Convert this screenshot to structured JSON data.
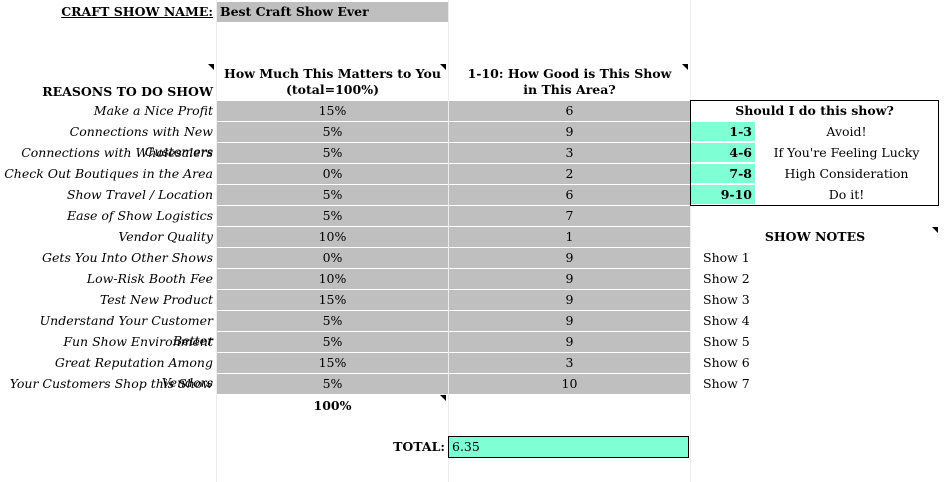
{
  "header": {
    "label": "CRAFT SHOW NAME:",
    "value": "Best Craft Show Ever"
  },
  "columns": {
    "reasons": "REASONS TO DO SHOW",
    "matters": "How Much This Matters to You (total=100%)",
    "good": "1-10: How Good is This Show in This Area?"
  },
  "rows": [
    {
      "reason": "Make a Nice Profit",
      "matters": "15%",
      "good": "6"
    },
    {
      "reason": "Connections with New Customers",
      "matters": "5%",
      "good": "9"
    },
    {
      "reason": "Connections with Wholesalers",
      "matters": "5%",
      "good": "3"
    },
    {
      "reason": "Check Out Boutiques in the Area",
      "matters": "0%",
      "good": "2"
    },
    {
      "reason": "Show Travel / Location",
      "matters": "5%",
      "good": "6"
    },
    {
      "reason": "Ease of Show Logistics",
      "matters": "5%",
      "good": "7"
    },
    {
      "reason": "Vendor Quality",
      "matters": "10%",
      "good": "1"
    },
    {
      "reason": "Gets You Into Other Shows",
      "matters": "0%",
      "good": "9"
    },
    {
      "reason": "Low-Risk Booth Fee",
      "matters": "10%",
      "good": "9"
    },
    {
      "reason": "Test New Product",
      "matters": "15%",
      "good": "9"
    },
    {
      "reason": "Understand Your Customer Better",
      "matters": "5%",
      "good": "9"
    },
    {
      "reason": "Fun Show Environment",
      "matters": "5%",
      "good": "9"
    },
    {
      "reason": "Great Reputation Among Vendors",
      "matters": "15%",
      "good": "3"
    },
    {
      "reason": "Your Customers Shop this Show",
      "matters": "5%",
      "good": "10"
    }
  ],
  "matters_total": "100%",
  "total": {
    "label": "TOTAL:",
    "value": "6.35"
  },
  "legend": {
    "title": "Should I do this show?",
    "items": [
      {
        "range": "1-3",
        "text": "Avoid!"
      },
      {
        "range": "4-6",
        "text": "If You're Feeling Lucky"
      },
      {
        "range": "7-8",
        "text": "High Consideration"
      },
      {
        "range": "9-10",
        "text": "Do it!"
      }
    ]
  },
  "notes": {
    "title": "SHOW NOTES",
    "items": [
      "Show 1",
      "Show 2",
      "Show 3",
      "Show 4",
      "Show 5",
      "Show 6",
      "Show 7"
    ]
  },
  "colors": {
    "accent": "#7fffd4",
    "input_grey": "#bfbfbf"
  }
}
